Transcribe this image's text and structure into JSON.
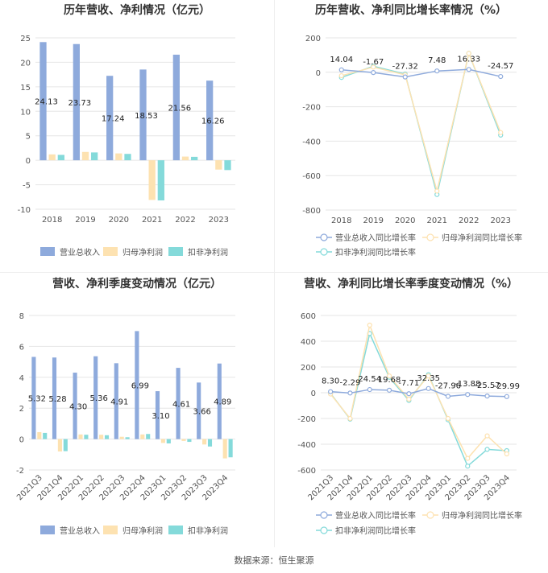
{
  "source": "数据来源：恒生聚源",
  "colors": {
    "revenue": "#8eaadc",
    "parent_profit": "#fde2b1",
    "deducted_profit": "#84dada",
    "grid": "#e6e6e6",
    "axis_text": "#555555",
    "title": "#333333"
  },
  "chart_data": [
    {
      "type": "bar",
      "title": "历年营收、净利情况（亿元）",
      "categories": [
        "2018",
        "2019",
        "2020",
        "2021",
        "2022",
        "2023"
      ],
      "ylim": [
        -10,
        25
      ],
      "yticks": [
        25,
        20,
        15,
        10,
        5,
        0,
        -5,
        -10
      ],
      "grid": true,
      "legend_position": "bottom",
      "series": [
        {
          "name": "营业总收入",
          "values": [
            24.13,
            23.73,
            17.24,
            18.53,
            21.56,
            16.26
          ],
          "labels": [
            "24.13",
            "23.73",
            "17.24",
            "18.53",
            "21.56",
            "16.26"
          ]
        },
        {
          "name": "归母净利润",
          "values": [
            1.2,
            1.7,
            1.4,
            -8.1,
            0.75,
            -1.9
          ]
        },
        {
          "name": "扣非净利润",
          "values": [
            1.1,
            1.6,
            1.3,
            -8.2,
            0.7,
            -2.0
          ]
        }
      ]
    },
    {
      "type": "line",
      "title": "历年营收、净利同比增长率情况（%）",
      "categories": [
        "2018",
        "2019",
        "2020",
        "2021",
        "2022",
        "2023"
      ],
      "ylim": [
        -800,
        200
      ],
      "yticks": [
        200,
        0,
        -200,
        -400,
        -600,
        -800
      ],
      "grid": true,
      "legend_position": "bottom",
      "series": [
        {
          "name": "营业总收入同比增长率",
          "values": [
            14.04,
            -1.67,
            -27.32,
            7.48,
            16.33,
            -24.57
          ],
          "labels": [
            "14.04",
            "-1.67",
            "-27.32",
            "7.48",
            "16.33",
            "-24.57"
          ]
        },
        {
          "name": "归母净利润同比增长率",
          "values": [
            -20,
            30,
            -15,
            -690,
            110,
            -350
          ]
        },
        {
          "name": "扣非净利润同比增长率",
          "values": [
            -30,
            35,
            -10,
            -710,
            110,
            -365
          ]
        }
      ]
    },
    {
      "type": "bar",
      "title": "营收、净利季度变动情况（亿元）",
      "categories": [
        "2021Q3",
        "2021Q4",
        "2022Q1",
        "2022Q2",
        "2022Q3",
        "2022Q4",
        "2023Q1",
        "2023Q2",
        "2023Q3",
        "2023Q4"
      ],
      "ylim": [
        -2,
        8
      ],
      "yticks": [
        8,
        6,
        4,
        2,
        0,
        -2
      ],
      "grid": true,
      "legend_position": "bottom",
      "series": [
        {
          "name": "营业总收入",
          "values": [
            5.32,
            5.28,
            4.3,
            5.36,
            4.91,
            6.99,
            3.1,
            4.61,
            3.66,
            4.89
          ],
          "labels": [
            "5.32",
            "5.28",
            "4.30",
            "5.36",
            "4.91",
            "6.99",
            "3.10",
            "4.61",
            "3.66",
            "4.89"
          ]
        },
        {
          "name": "归母净利润",
          "values": [
            0.45,
            -0.8,
            0.3,
            0.28,
            0.15,
            0.3,
            -0.25,
            -0.12,
            -0.35,
            -1.25
          ]
        },
        {
          "name": "扣非净利润",
          "values": [
            0.4,
            -0.78,
            0.28,
            0.25,
            0.12,
            0.33,
            -0.28,
            -0.18,
            -0.48,
            -1.18
          ]
        }
      ]
    },
    {
      "type": "line",
      "title": "营收、净利同比增长率季度变动情况（%）",
      "categories": [
        "2021Q3",
        "2021Q4",
        "2022Q1",
        "2022Q2",
        "2022Q3",
        "2022Q4",
        "2023Q1",
        "2023Q2",
        "2023Q3",
        "2023Q4"
      ],
      "ylim": [
        -600,
        600
      ],
      "yticks": [
        600,
        400,
        200,
        0,
        -200,
        -400,
        -600
      ],
      "grid": true,
      "legend_position": "bottom",
      "series": [
        {
          "name": "营业总收入同比增长率",
          "values": [
            8.3,
            -2.29,
            24.54,
            19.68,
            -7.71,
            32.35,
            -27.96,
            -13.88,
            -25.57,
            -29.99
          ],
          "labels": [
            "8.30",
            "-2.29",
            "24.54",
            "19.68",
            "-7.71",
            "32.35",
            "-27.96",
            "-13.88",
            "-25.57",
            "-29.99"
          ]
        },
        {
          "name": "归母净利润同比增长率",
          "values": [
            -10,
            -200,
            525,
            130,
            -50,
            130,
            -200,
            -510,
            -335,
            -475
          ]
        },
        {
          "name": "扣非净利润同比增长率",
          "values": [
            -5,
            -205,
            460,
            120,
            -60,
            140,
            -210,
            -570,
            -440,
            -450
          ]
        }
      ]
    }
  ]
}
